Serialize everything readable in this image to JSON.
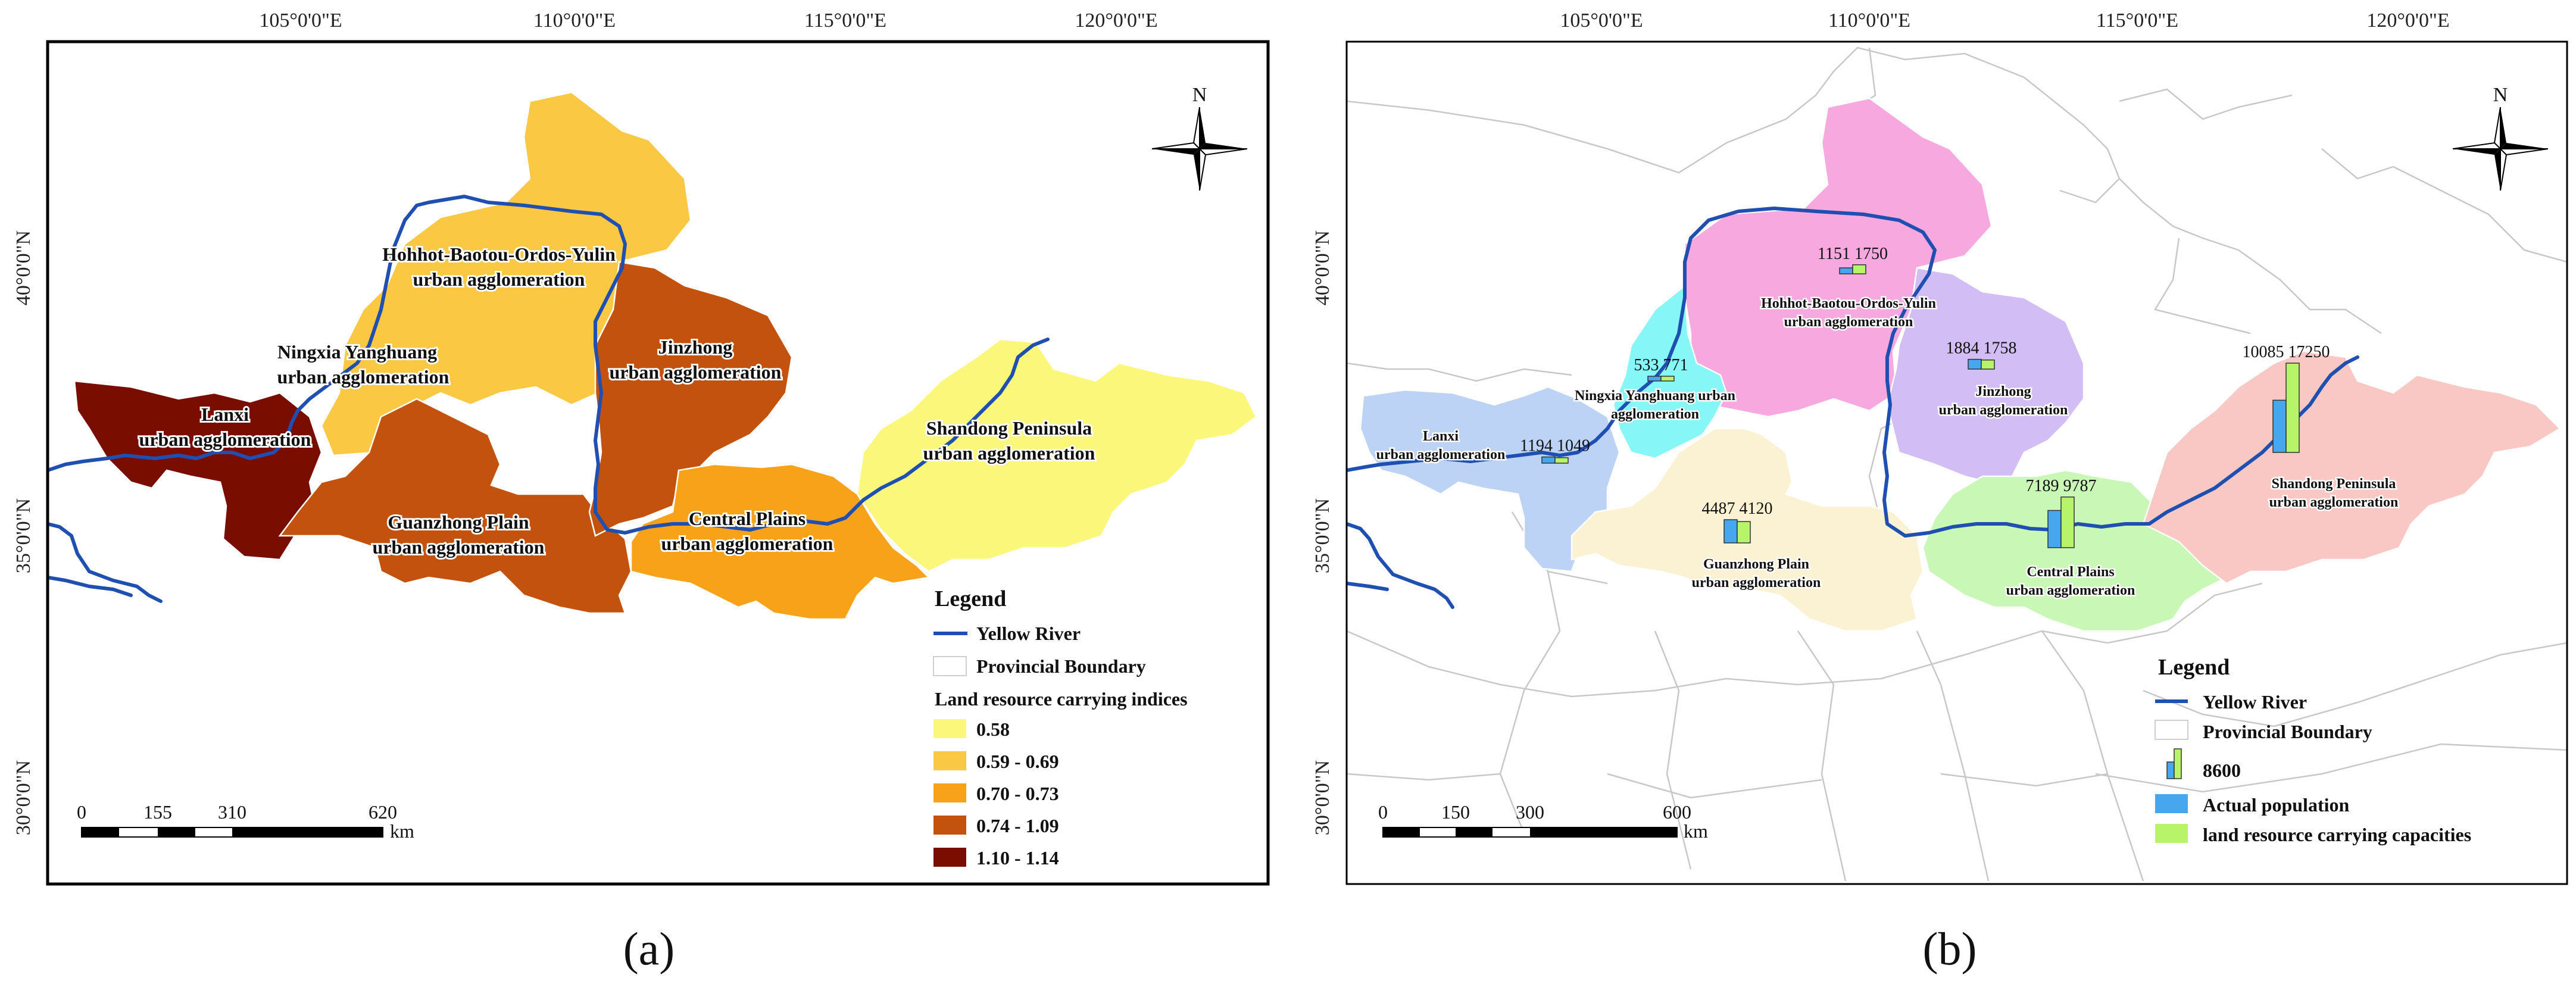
{
  "panel_a": {
    "caption": "(a)",
    "lon_ticks": [
      "105°0'0\"E",
      "110°0'0\"E",
      "115°0'0\"E",
      "120°0'0\"E"
    ],
    "lat_ticks": [
      "40°0'0\"N",
      "35°0'0\"N",
      "30°0'0\"N"
    ],
    "north": "N",
    "regions": [
      {
        "line1": "Hohhot-Baotou-Ordos-Yulin",
        "line2": "urban agglomeration",
        "class": "0.59 - 0.69",
        "color": "#fbc844"
      },
      {
        "line1": "Ningxia Yanghuang",
        "line2": "urban agglomeration",
        "class": "0.59 - 0.69",
        "color": "#fbc844"
      },
      {
        "line1": "Lanxi",
        "line2": "urban agglomeration",
        "class": "1.10 - 1.14",
        "color": "#780d00"
      },
      {
        "line1": "Jinzhong",
        "line2": "urban agglomeration",
        "class": "0.74 - 1.09",
        "color": "#c2520d"
      },
      {
        "line1": "Guanzhong Plain",
        "line2": "urban agglomeration",
        "class": "0.74 - 1.09",
        "color": "#c2520d"
      },
      {
        "line1": "Central Plains",
        "line2": "urban agglomeration",
        "class": "0.70 - 0.73",
        "color": "#f8a219"
      },
      {
        "line1": "Shandong Peninsula",
        "line2": "urban agglomeration",
        "class": "0.58",
        "color": "#fbf77a"
      }
    ],
    "legend": {
      "title": "Legend",
      "yellow_river": "Yellow River",
      "provincial_boundary": "Provincial Boundary",
      "indices_title": "Land resource carrying indices",
      "classes": [
        {
          "label": "0.58",
          "color": "#fbf77a"
        },
        {
          "label": "0.59 - 0.69",
          "color": "#fbc844"
        },
        {
          "label": "0.70 - 0.73",
          "color": "#f8a219"
        },
        {
          "label": "0.74 - 1.09",
          "color": "#c2520d"
        },
        {
          "label": "1.10 - 1.14",
          "color": "#780d00"
        }
      ]
    },
    "scale": {
      "ticks": [
        "0",
        "155",
        "310",
        "620"
      ],
      "unit": "km"
    }
  },
  "panel_b": {
    "caption": "(b)",
    "lon_ticks": [
      "105°0'0\"E",
      "110°0'0\"E",
      "115°0'0\"E",
      "120°0'0\"E"
    ],
    "lat_ticks": [
      "40°0'0\"N",
      "35°0'0\"N",
      "30°0'0\"N"
    ],
    "north": "N",
    "regions": [
      {
        "line1": "Hohhot-Baotou-Ordos-Yulin",
        "line2": "urban agglomeration",
        "actual_population": 1151,
        "carrying_capacity": 1750,
        "color": "#f7a8df"
      },
      {
        "line1": "Ningxia Yanghuang urban",
        "line2": "agglomeration",
        "actual_population": 533,
        "carrying_capacity": 771,
        "color": "#86f6f6"
      },
      {
        "line1": "Lanxi",
        "line2": "urban agglomeration",
        "actual_population": 1194,
        "carrying_capacity": 1049,
        "color": "#bcd3f5"
      },
      {
        "line1": "Jinzhong",
        "line2": "urban agglomeration",
        "actual_population": 1884,
        "carrying_capacity": 1758,
        "color": "#d2bdf5"
      },
      {
        "line1": "Guanzhong Plain",
        "line2": "urban agglomeration",
        "actual_population": 4487,
        "carrying_capacity": 4120,
        "color": "#fbf2d4"
      },
      {
        "line1": "Central Plains",
        "line2": "urban agglomeration",
        "actual_population": 7189,
        "carrying_capacity": 9787,
        "color": "#c9f7b5"
      },
      {
        "line1": "Shandong Peninsula",
        "line2": "urban agglomeration",
        "actual_population": 10085,
        "carrying_capacity": 17250,
        "color": "#f9c8c4"
      }
    ],
    "legend": {
      "title": "Legend",
      "yellow_river": "Yellow River",
      "provincial_boundary": "Provincial Boundary",
      "bar_reference": "8600",
      "actual_population": "Actual population",
      "carrying_capacity": "land resource carrying capacities",
      "pop_color": "#47a7ee",
      "cap_color": "#b8f46a"
    },
    "scale": {
      "ticks": [
        "0",
        "150",
        "300",
        "600"
      ],
      "unit": "km"
    }
  },
  "colors": {
    "river": "#1f4fb0",
    "frame": "#000000",
    "prov": "#c8c8c8"
  }
}
